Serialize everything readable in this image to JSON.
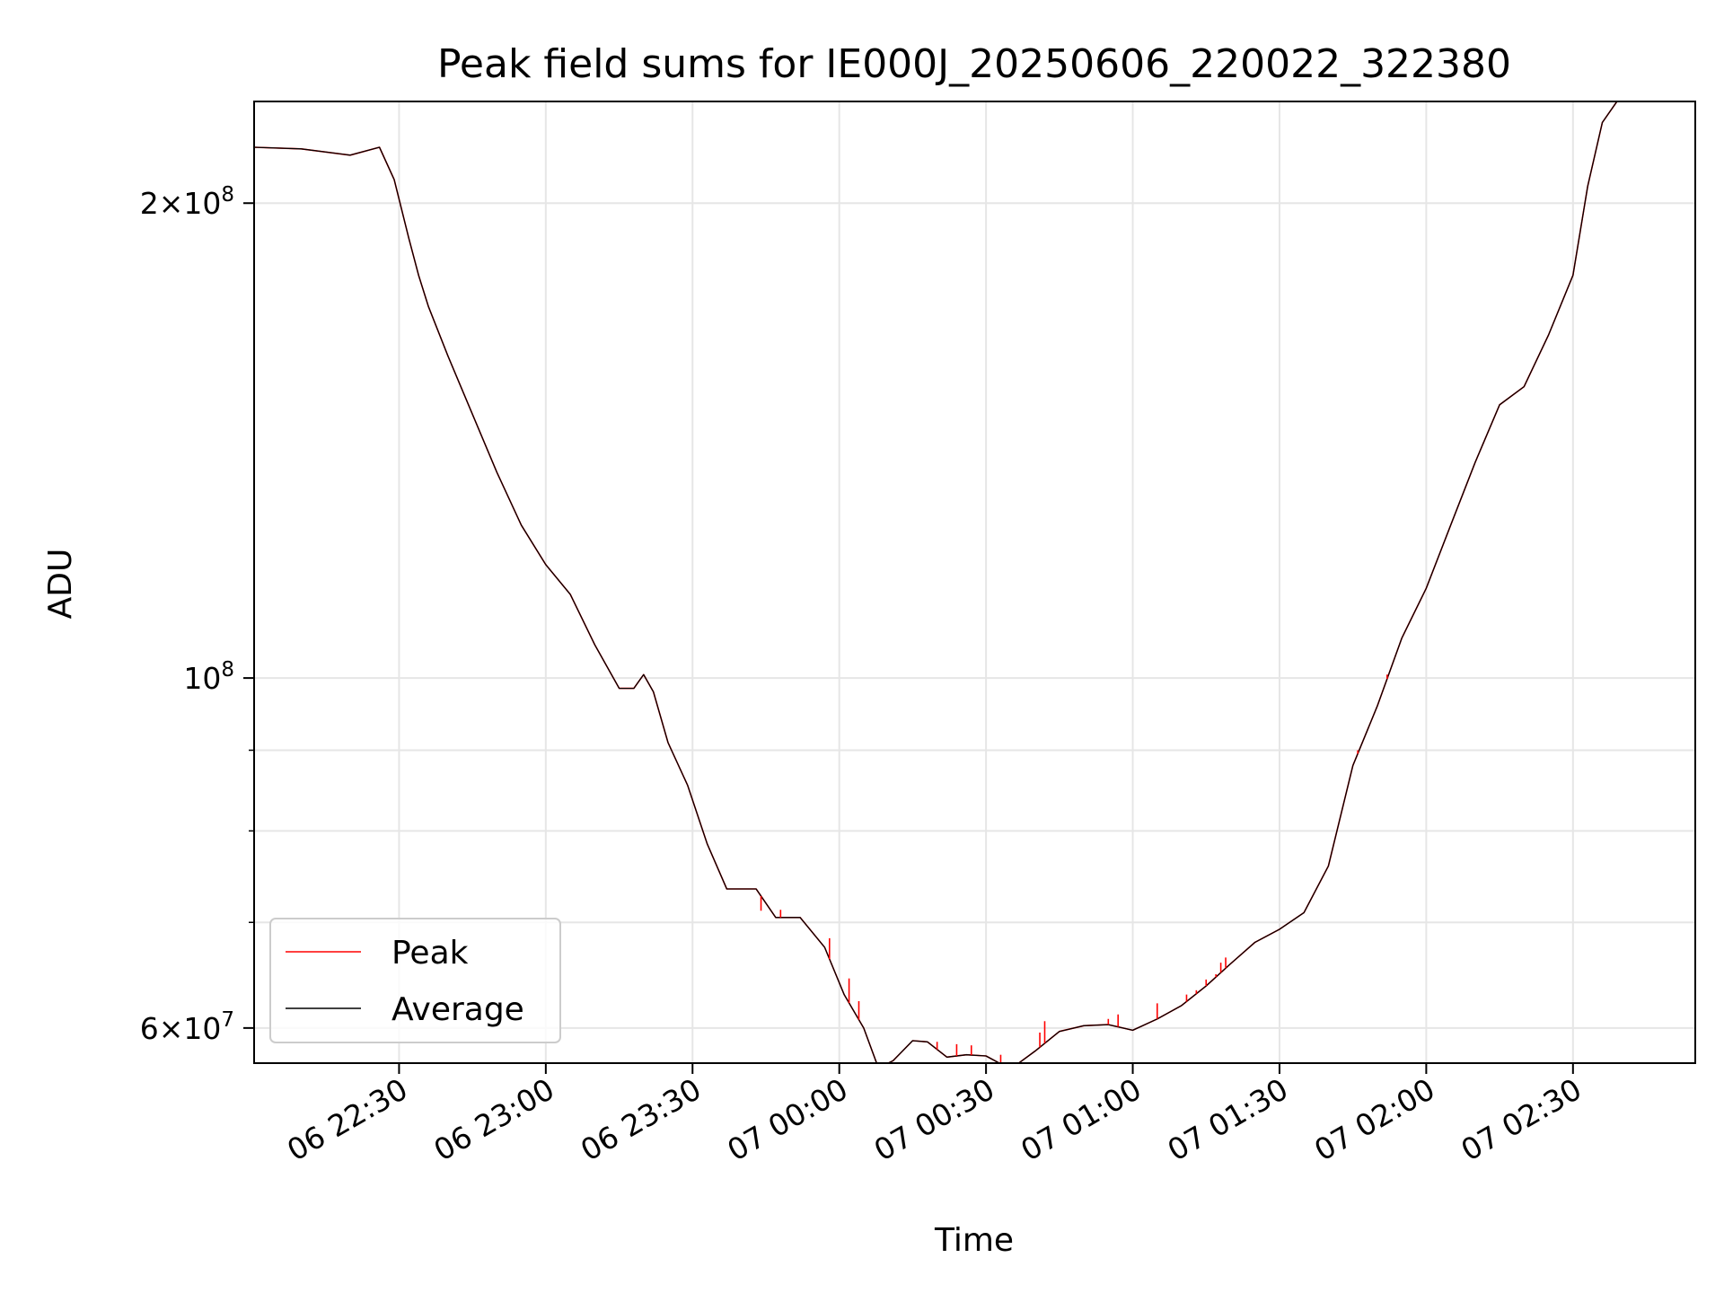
{
  "chart_data": {
    "type": "line",
    "title": "Peak field sums for IE000J_20250606_220022_322380",
    "xlabel": "Time",
    "ylabel": "ADU",
    "y_scale": "log",
    "ylim": [
      57000000,
      232000000
    ],
    "xlim": [
      "2025-06-06 22:00:22",
      "2025-06-07 02:55:00"
    ],
    "grid": true,
    "legend_position": "lower-left",
    "x_ticks": [
      {
        "t": "2025-06-06 22:30",
        "label": "06 22:30"
      },
      {
        "t": "2025-06-06 23:00",
        "label": "06 23:00"
      },
      {
        "t": "2025-06-06 23:30",
        "label": "06 23:30"
      },
      {
        "t": "2025-06-07 00:00",
        "label": "07 00:00"
      },
      {
        "t": "2025-06-07 00:30",
        "label": "07 00:30"
      },
      {
        "t": "2025-06-07 01:00",
        "label": "07 01:00"
      },
      {
        "t": "2025-06-07 01:30",
        "label": "07 01:30"
      },
      {
        "t": "2025-06-07 02:00",
        "label": "07 02:00"
      },
      {
        "t": "2025-06-07 02:30",
        "label": "07 02:30"
      }
    ],
    "y_major_ticks": [
      {
        "v": 60000000,
        "mant": "6",
        "exp": "7"
      },
      {
        "v": 100000000,
        "mant": "",
        "exp": "8"
      },
      {
        "v": 200000000,
        "mant": "2",
        "exp": "8"
      }
    ],
    "y_minor_ticks": [
      70000000,
      80000000,
      90000000
    ],
    "series": [
      {
        "name": "Peak",
        "color": "#ff0000",
        "points": [
          [
            "2025-06-06 22:00:22",
            217000000
          ],
          [
            "2025-06-06 22:10:00",
            216500000
          ],
          [
            "2025-06-06 22:20:00",
            214500000
          ],
          [
            "2025-06-06 22:26:00",
            217000000
          ],
          [
            "2025-06-06 22:29:00",
            207000000
          ],
          [
            "2025-06-06 22:32:00",
            190000000
          ],
          [
            "2025-06-06 22:34:00",
            180000000
          ],
          [
            "2025-06-06 22:36:00",
            172000000
          ],
          [
            "2025-06-06 22:40:00",
            160000000
          ],
          [
            "2025-06-06 22:45:00",
            147000000
          ],
          [
            "2025-06-06 22:50:00",
            135000000
          ],
          [
            "2025-06-06 22:55:00",
            125000000
          ],
          [
            "2025-06-06 23:00:00",
            118000000
          ],
          [
            "2025-06-06 23:05:00",
            113000000
          ],
          [
            "2025-06-06 23:10:00",
            105000000
          ],
          [
            "2025-06-06 23:15:00",
            98500000
          ],
          [
            "2025-06-06 23:18:00",
            98500000
          ],
          [
            "2025-06-06 23:20:00",
            100500000
          ],
          [
            "2025-06-06 23:22:00",
            98000000
          ],
          [
            "2025-06-06 23:25:00",
            91000000
          ],
          [
            "2025-06-06 23:29:00",
            85500000
          ],
          [
            "2025-06-06 23:33:00",
            78500000
          ],
          [
            "2025-06-06 23:37:00",
            73500000
          ],
          [
            "2025-06-06 23:40:00",
            73500000
          ],
          [
            "2025-06-06 23:43:00",
            73500000
          ],
          [
            "2025-06-06 23:47:00",
            70500000
          ],
          [
            "2025-06-06 23:52:00",
            70500000
          ],
          [
            "2025-06-06 23:57:00",
            67500000
          ],
          [
            "2025-06-07 00:01:00",
            63000000
          ],
          [
            "2025-06-07 00:05:00",
            60000000
          ],
          [
            "2025-06-07 00:08:00",
            56600000
          ],
          [
            "2025-06-07 00:11:00",
            57200000
          ],
          [
            "2025-06-07 00:15:00",
            58900000
          ],
          [
            "2025-06-07 00:18:00",
            58800000
          ],
          [
            "2025-06-07 00:22:00",
            57500000
          ],
          [
            "2025-06-07 00:26:00",
            57700000
          ],
          [
            "2025-06-07 00:30:00",
            57600000
          ],
          [
            "2025-06-07 00:35:00",
            56500000
          ],
          [
            "2025-06-07 00:40:00",
            58000000
          ],
          [
            "2025-06-07 00:45:00",
            59700000
          ],
          [
            "2025-06-07 00:50:00",
            60200000
          ],
          [
            "2025-06-07 00:55:00",
            60300000
          ],
          [
            "2025-06-07 01:00:00",
            59800000
          ],
          [
            "2025-06-07 01:05:00",
            60800000
          ],
          [
            "2025-06-07 01:10:00",
            62000000
          ],
          [
            "2025-06-07 01:15:00",
            63800000
          ],
          [
            "2025-06-07 01:20:00",
            65900000
          ],
          [
            "2025-06-07 01:25:00",
            68000000
          ],
          [
            "2025-06-07 01:30:00",
            69300000
          ],
          [
            "2025-06-07 01:35:00",
            71000000
          ],
          [
            "2025-06-07 01:40:00",
            76000000
          ],
          [
            "2025-06-07 01:45:00",
            88000000
          ],
          [
            "2025-06-07 01:50:00",
            96000000
          ],
          [
            "2025-06-07 01:55:00",
            106000000
          ],
          [
            "2025-06-07 02:00:00",
            114000000
          ],
          [
            "2025-06-07 02:05:00",
            125000000
          ],
          [
            "2025-06-07 02:10:00",
            137000000
          ],
          [
            "2025-06-07 02:15:00",
            149000000
          ],
          [
            "2025-06-07 02:20:00",
            153000000
          ],
          [
            "2025-06-07 02:25:00",
            165000000
          ],
          [
            "2025-06-07 02:30:00",
            180000000
          ],
          [
            "2025-06-07 02:33:00",
            205000000
          ],
          [
            "2025-06-07 02:36:00",
            225000000
          ],
          [
            "2025-06-07 02:39:00",
            232000000
          ]
        ]
      },
      {
        "name": "Average",
        "color": "#000000",
        "points": [
          [
            "2025-06-06 22:00:22",
            217000000
          ],
          [
            "2025-06-06 22:10:00",
            216500000
          ],
          [
            "2025-06-06 22:20:00",
            214500000
          ],
          [
            "2025-06-06 22:26:00",
            217000000
          ],
          [
            "2025-06-06 22:29:00",
            207000000
          ],
          [
            "2025-06-06 22:32:00",
            190000000
          ],
          [
            "2025-06-06 22:34:00",
            180000000
          ],
          [
            "2025-06-06 22:36:00",
            172000000
          ],
          [
            "2025-06-06 22:40:00",
            160000000
          ],
          [
            "2025-06-06 22:45:00",
            147000000
          ],
          [
            "2025-06-06 22:50:00",
            135000000
          ],
          [
            "2025-06-06 22:55:00",
            125000000
          ],
          [
            "2025-06-06 23:00:00",
            118000000
          ],
          [
            "2025-06-06 23:05:00",
            113000000
          ],
          [
            "2025-06-06 23:10:00",
            105000000
          ],
          [
            "2025-06-06 23:15:00",
            98500000
          ],
          [
            "2025-06-06 23:18:00",
            98500000
          ],
          [
            "2025-06-06 23:20:00",
            100500000
          ],
          [
            "2025-06-06 23:22:00",
            98000000
          ],
          [
            "2025-06-06 23:25:00",
            91000000
          ],
          [
            "2025-06-06 23:29:00",
            85500000
          ],
          [
            "2025-06-06 23:33:00",
            78500000
          ],
          [
            "2025-06-06 23:37:00",
            73500000
          ],
          [
            "2025-06-06 23:40:00",
            73500000
          ],
          [
            "2025-06-06 23:43:00",
            73500000
          ],
          [
            "2025-06-06 23:47:00",
            70500000
          ],
          [
            "2025-06-06 23:52:00",
            70500000
          ],
          [
            "2025-06-06 23:57:00",
            67500000
          ],
          [
            "2025-06-07 00:01:00",
            63000000
          ],
          [
            "2025-06-07 00:05:00",
            60000000
          ],
          [
            "2025-06-07 00:08:00",
            56600000
          ],
          [
            "2025-06-07 00:11:00",
            57200000
          ],
          [
            "2025-06-07 00:15:00",
            58900000
          ],
          [
            "2025-06-07 00:18:00",
            58800000
          ],
          [
            "2025-06-07 00:22:00",
            57500000
          ],
          [
            "2025-06-07 00:26:00",
            57700000
          ],
          [
            "2025-06-07 00:30:00",
            57600000
          ],
          [
            "2025-06-07 00:35:00",
            56500000
          ],
          [
            "2025-06-07 00:40:00",
            58000000
          ],
          [
            "2025-06-07 00:45:00",
            59700000
          ],
          [
            "2025-06-07 00:50:00",
            60200000
          ],
          [
            "2025-06-07 00:55:00",
            60300000
          ],
          [
            "2025-06-07 01:00:00",
            59800000
          ],
          [
            "2025-06-07 01:05:00",
            60800000
          ],
          [
            "2025-06-07 01:10:00",
            62000000
          ],
          [
            "2025-06-07 01:15:00",
            63800000
          ],
          [
            "2025-06-07 01:20:00",
            65900000
          ],
          [
            "2025-06-07 01:25:00",
            68000000
          ],
          [
            "2025-06-07 01:30:00",
            69300000
          ],
          [
            "2025-06-07 01:35:00",
            71000000
          ],
          [
            "2025-06-07 01:40:00",
            76000000
          ],
          [
            "2025-06-07 01:45:00",
            88000000
          ],
          [
            "2025-06-07 01:50:00",
            96000000
          ],
          [
            "2025-06-07 01:55:00",
            106000000
          ],
          [
            "2025-06-07 02:00:00",
            114000000
          ],
          [
            "2025-06-07 02:05:00",
            125000000
          ],
          [
            "2025-06-07 02:10:00",
            137000000
          ],
          [
            "2025-06-07 02:15:00",
            149000000
          ],
          [
            "2025-06-07 02:20:00",
            153000000
          ],
          [
            "2025-06-07 02:25:00",
            165000000
          ],
          [
            "2025-06-07 02:30:00",
            180000000
          ],
          [
            "2025-06-07 02:33:00",
            205000000
          ],
          [
            "2025-06-07 02:36:00",
            225000000
          ],
          [
            "2025-06-07 02:39:00",
            232000000
          ]
        ]
      }
    ],
    "peak_spikes": [
      [
        "2025-06-06 23:44:00",
        71200000
      ],
      [
        "2025-06-06 23:48:00",
        71300000
      ],
      [
        "2025-06-06 23:58:00",
        68400000
      ],
      [
        "2025-06-07 00:02:00",
        64500000
      ],
      [
        "2025-06-07 00:04:00",
        62400000
      ],
      [
        "2025-06-07 00:20:00",
        58800000
      ],
      [
        "2025-06-07 00:24:00",
        58600000
      ],
      [
        "2025-06-07 00:27:00",
        58500000
      ],
      [
        "2025-06-07 00:33:00",
        57700000
      ],
      [
        "2025-06-07 00:41:00",
        59600000
      ],
      [
        "2025-06-07 00:42:00",
        60600000
      ],
      [
        "2025-06-07 00:55:00",
        60800000
      ],
      [
        "2025-06-07 00:57:00",
        61200000
      ],
      [
        "2025-06-07 01:05:00",
        62200000
      ],
      [
        "2025-06-07 01:11:00",
        63000000
      ],
      [
        "2025-06-07 01:13:00",
        63400000
      ],
      [
        "2025-06-07 01:15:00",
        64400000
      ],
      [
        "2025-06-07 01:17:00",
        64900000
      ],
      [
        "2025-06-07 01:18:00",
        66000000
      ],
      [
        "2025-06-07 01:19:00",
        66500000
      ],
      [
        "2025-06-07 01:46:00",
        90000000
      ],
      [
        "2025-06-07 01:52:00",
        100500000
      ]
    ]
  },
  "legend": {
    "items": [
      {
        "label": "Peak",
        "color": "#ff0000"
      },
      {
        "label": "Average",
        "color": "#000000"
      }
    ]
  }
}
